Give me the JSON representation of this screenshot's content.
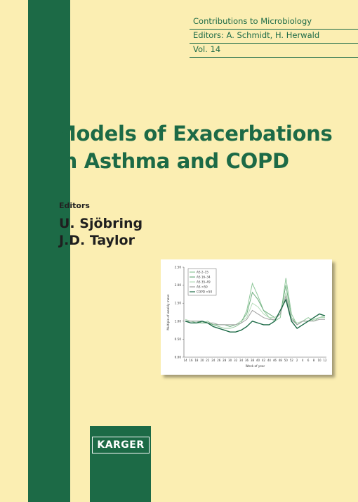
{
  "header": {
    "series": "Contributions to Microbiology",
    "editors": "Editors: A. Schmidt, H. Herwald",
    "volume": "Vol. 14"
  },
  "title": {
    "line1": "Models of Exacerbations",
    "line2": "in Asthma and COPD"
  },
  "editors_label": "Editors",
  "editors": [
    "U. Sjöbring",
    "J.D. Taylor"
  ],
  "publisher": "KARGER",
  "chart_data": {
    "type": "line",
    "y_label": "Multiple of weekly mean",
    "x_label": "Week of year",
    "categories": [
      "14",
      "16",
      "18",
      "20",
      "22",
      "24",
      "26",
      "28",
      "30",
      "32",
      "34",
      "36",
      "38",
      "40",
      "42",
      "44",
      "46",
      "48",
      "50",
      "52",
      "2",
      "4",
      "6",
      "8",
      "10",
      "12"
    ],
    "ylim": [
      0,
      2.5
    ],
    "yticks": [
      {
        "value": 0,
        "label": "0.00"
      },
      {
        "value": 0.5,
        "label": "0.50"
      },
      {
        "value": 1,
        "label": "1.00"
      },
      {
        "value": 1.5,
        "label": "1.50"
      },
      {
        "value": 2,
        "label": "2.00"
      },
      {
        "value": 2.5,
        "label": "2.50"
      }
    ],
    "series": [
      {
        "name": "AS 2–15",
        "color": "#8fc79a",
        "values": [
          1.0,
          1.0,
          0.95,
          0.95,
          1.0,
          0.9,
          0.85,
          0.8,
          0.8,
          0.85,
          0.95,
          1.3,
          2.05,
          1.7,
          1.3,
          1.1,
          1.0,
          1.1,
          2.2,
          1.2,
          0.9,
          1.0,
          1.1,
          1.0,
          1.1,
          1.15
        ]
      },
      {
        "name": "AS 16–34",
        "color": "#6fae7f",
        "values": [
          1.0,
          1.0,
          1.0,
          0.95,
          0.95,
          0.9,
          0.9,
          0.9,
          0.85,
          0.9,
          1.0,
          1.2,
          1.8,
          1.6,
          1.3,
          1.2,
          1.1,
          1.2,
          2.0,
          1.1,
          0.9,
          1.0,
          1.0,
          1.05,
          1.1,
          1.1
        ]
      },
      {
        "name": "AS 35–49",
        "color": "#b5dcb9",
        "values": [
          1.05,
          1.0,
          1.0,
          1.0,
          0.95,
          0.95,
          0.9,
          0.9,
          0.9,
          0.9,
          1.0,
          1.1,
          1.5,
          1.4,
          1.2,
          1.1,
          1.1,
          1.2,
          1.8,
          1.1,
          0.95,
          1.0,
          1.0,
          1.05,
          1.1,
          1.1
        ]
      },
      {
        "name": "AS >50",
        "color": "#a0a0a0",
        "values": [
          1.0,
          1.0,
          1.0,
          1.0,
          0.95,
          0.95,
          0.9,
          0.9,
          0.9,
          0.9,
          0.95,
          1.05,
          1.3,
          1.2,
          1.1,
          1.05,
          1.05,
          1.2,
          1.7,
          1.05,
          0.9,
          1.0,
          1.0,
          1.0,
          1.05,
          1.05
        ]
      },
      {
        "name": "COPD >50",
        "color": "#1c6a46",
        "values": [
          1.0,
          0.95,
          0.95,
          1.0,
          0.95,
          0.85,
          0.8,
          0.75,
          0.7,
          0.7,
          0.75,
          0.85,
          1.0,
          0.95,
          0.9,
          0.9,
          1.0,
          1.3,
          1.6,
          1.0,
          0.8,
          0.9,
          1.0,
          1.1,
          1.2,
          1.15
        ]
      }
    ]
  }
}
